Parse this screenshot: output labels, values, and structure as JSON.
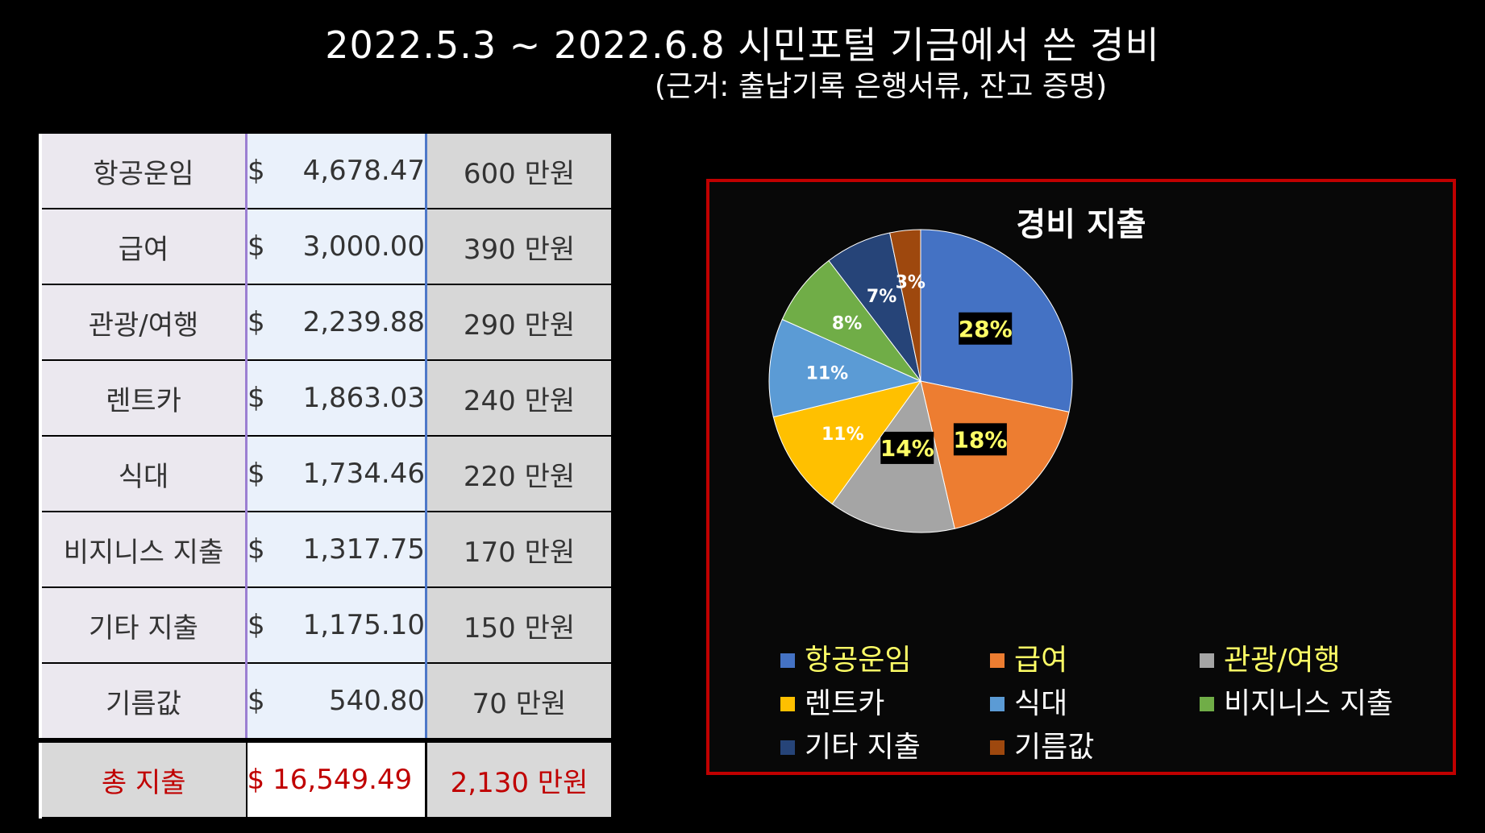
{
  "header": {
    "title": "2022.5.3 ~ 2022.6.8 시민포털 기금에서 쓴 경비",
    "subtitle": "(근거: 출납기록 은행서류, 잔고 증명)"
  },
  "table": {
    "rows": [
      {
        "category": "항공운임",
        "currency": "$",
        "usd": "4,678.47",
        "krw": "600 만원"
      },
      {
        "category": "급여",
        "currency": "$",
        "usd": "3,000.00",
        "krw": "390 만원"
      },
      {
        "category": "관광/여행",
        "currency": "$",
        "usd": "2,239.88",
        "krw": "290 만원"
      },
      {
        "category": "렌트카",
        "currency": "$",
        "usd": "1,863.03",
        "krw": "240 만원"
      },
      {
        "category": "식대",
        "currency": "$",
        "usd": "1,734.46",
        "krw": "220 만원"
      },
      {
        "category": "비지니스 지출",
        "currency": "$",
        "usd": "1,317.75",
        "krw": "170 만원"
      },
      {
        "category": "기타 지출",
        "currency": "$",
        "usd": "1,175.10",
        "krw": "150 만원"
      },
      {
        "category": "기름값",
        "currency": "$",
        "usd": "540.80",
        "krw": "70 만원"
      }
    ],
    "total": {
      "category": "총 지출",
      "currency": "$",
      "usd": "16,549.49",
      "krw": "2,130 만원"
    }
  },
  "chart_data": {
    "type": "pie",
    "title": "경비 지출",
    "legend_position": "bottom",
    "categories": [
      "항공운임",
      "급여",
      "관광/여행",
      "렌트카",
      "식대",
      "비지니스 지출",
      "기타 지출",
      "기름값"
    ],
    "values": [
      4678.47,
      3000.0,
      2239.88,
      1863.03,
      1734.46,
      1317.75,
      1175.1,
      540.8
    ],
    "labels": [
      "28%",
      "18%",
      "14%",
      "11%",
      "11%",
      "8%",
      "7%",
      "3%"
    ],
    "colors": [
      "#4472c4",
      "#ed7d31",
      "#a5a5a5",
      "#ffc000",
      "#5b9bd5",
      "#70ad47",
      "#264478",
      "#9e480e"
    ],
    "legend_text_colors": [
      "#ffff66",
      "#ffff66",
      "#ffff66",
      "#ffffff",
      "#ffffff",
      "#ffffff",
      "#ffffff",
      "#ffffff"
    ]
  }
}
